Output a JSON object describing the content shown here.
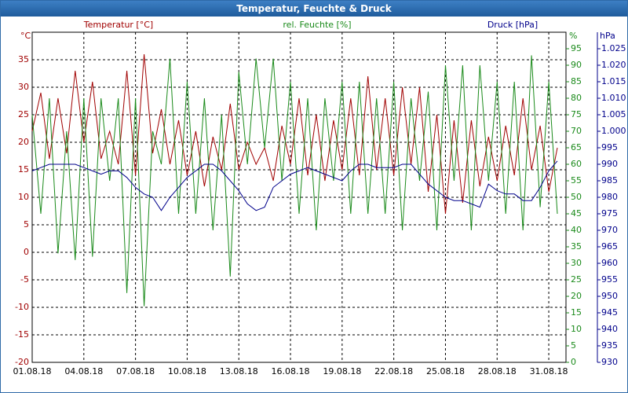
{
  "chart_data": {
    "type": "line",
    "title": "Temperatur, Feuchte & Druck",
    "y_unit": "°C",
    "y2_unit": "%",
    "y3_unit": "hPa",
    "x": [
      0,
      0.5,
      1,
      1.5,
      2,
      2.5,
      3,
      3.5,
      4,
      4.5,
      5,
      5.5,
      6,
      6.5,
      7,
      7.5,
      8,
      8.5,
      9,
      9.5,
      10,
      10.5,
      11,
      11.5,
      12,
      12.5,
      13,
      13.5,
      14,
      14.5,
      15,
      15.5,
      16,
      16.5,
      17,
      17.5,
      18,
      18.5,
      19,
      19.5,
      20,
      20.5,
      21,
      21.5,
      22,
      22.5,
      23,
      23.5,
      24,
      24.5,
      25,
      25.5,
      26,
      26.5,
      27,
      27.5,
      28,
      28.5,
      29,
      29.5,
      30,
      30.5
    ],
    "xlim": [
      0,
      31
    ],
    "xticks": [
      {
        "value": 0,
        "label": "01.08.18"
      },
      {
        "value": 3,
        "label": "04.08.18"
      },
      {
        "value": 6,
        "label": "07.08.18"
      },
      {
        "value": 9,
        "label": "10.08.18"
      },
      {
        "value": 12,
        "label": "13.08.18"
      },
      {
        "value": 15,
        "label": "16.08.18"
      },
      {
        "value": 18,
        "label": "19.08.18"
      },
      {
        "value": 21,
        "label": "22.08.18"
      },
      {
        "value": 24,
        "label": "25.08.18"
      },
      {
        "value": 27,
        "label": "28.08.18"
      },
      {
        "value": 30,
        "label": "31.08.18"
      }
    ],
    "ylim": [
      -20,
      40
    ],
    "yticks": [
      -20,
      -15,
      -10,
      -5,
      0,
      5,
      10,
      15,
      20,
      25,
      30,
      35
    ],
    "y2lim": [
      0,
      100
    ],
    "y2ticks": [
      0,
      5,
      10,
      15,
      20,
      25,
      30,
      35,
      40,
      45,
      50,
      55,
      60,
      65,
      70,
      75,
      80,
      85,
      90,
      95
    ],
    "y3lim": [
      930,
      1030
    ],
    "y3ticks": [
      930,
      935,
      940,
      945,
      950,
      955,
      960,
      965,
      970,
      975,
      980,
      985,
      990,
      995,
      {
        "value": 1000,
        "label": "1.000"
      },
      {
        "value": 1005,
        "label": "1.005"
      },
      {
        "value": 1010,
        "label": "1.010"
      },
      {
        "value": 1015,
        "label": "1.015"
      },
      {
        "value": 1020,
        "label": "1.020"
      },
      {
        "value": 1025,
        "label": "1.025"
      }
    ],
    "grid": true,
    "series": [
      {
        "name": "Temperatur [°C]",
        "color": "#a00000",
        "axis": "y",
        "values": [
          22,
          29,
          17,
          28,
          18,
          33,
          20,
          31,
          17,
          22,
          16,
          33,
          14,
          36,
          18,
          26,
          16,
          24,
          14,
          22,
          12,
          21,
          15,
          27,
          15,
          20,
          16,
          19,
          13,
          23,
          16,
          28,
          14,
          25,
          13,
          24,
          15,
          28,
          14,
          32,
          15,
          28,
          14,
          30,
          16,
          30,
          11,
          25,
          7,
          24,
          9,
          24,
          12,
          21,
          13,
          23,
          14,
          28,
          15,
          23,
          11,
          19
        ]
      },
      {
        "name": "rel. Feuchte [%]",
        "color": "#1a8a1a",
        "axis": "y2",
        "values": [
          75,
          45,
          80,
          33,
          70,
          31,
          80,
          32,
          80,
          55,
          80,
          21,
          80,
          17,
          70,
          60,
          92,
          45,
          85,
          45,
          80,
          40,
          75,
          26,
          88,
          60,
          92,
          65,
          92,
          55,
          85,
          45,
          80,
          40,
          80,
          55,
          85,
          45,
          85,
          45,
          80,
          45,
          85,
          40,
          80,
          55,
          82,
          40,
          90,
          55,
          90,
          40,
          90,
          55,
          85,
          45,
          85,
          40,
          93,
          47,
          85,
          45
        ]
      },
      {
        "name": "Druck [hPa]",
        "color": "#00008b",
        "axis": "y3",
        "values": [
          988,
          989,
          990,
          990,
          990,
          990,
          989,
          988,
          987,
          988,
          988,
          986,
          983,
          981,
          980,
          976,
          980,
          983,
          986,
          988,
          990,
          990,
          988,
          985,
          982,
          978,
          976,
          977,
          983,
          985,
          987,
          988,
          989,
          988,
          987,
          986,
          985,
          988,
          990,
          990,
          989,
          989,
          989,
          990,
          990,
          987,
          984,
          982,
          980,
          979,
          979,
          978,
          977,
          984,
          982,
          981,
          981,
          979,
          979,
          983,
          988,
          991
        ]
      }
    ]
  }
}
